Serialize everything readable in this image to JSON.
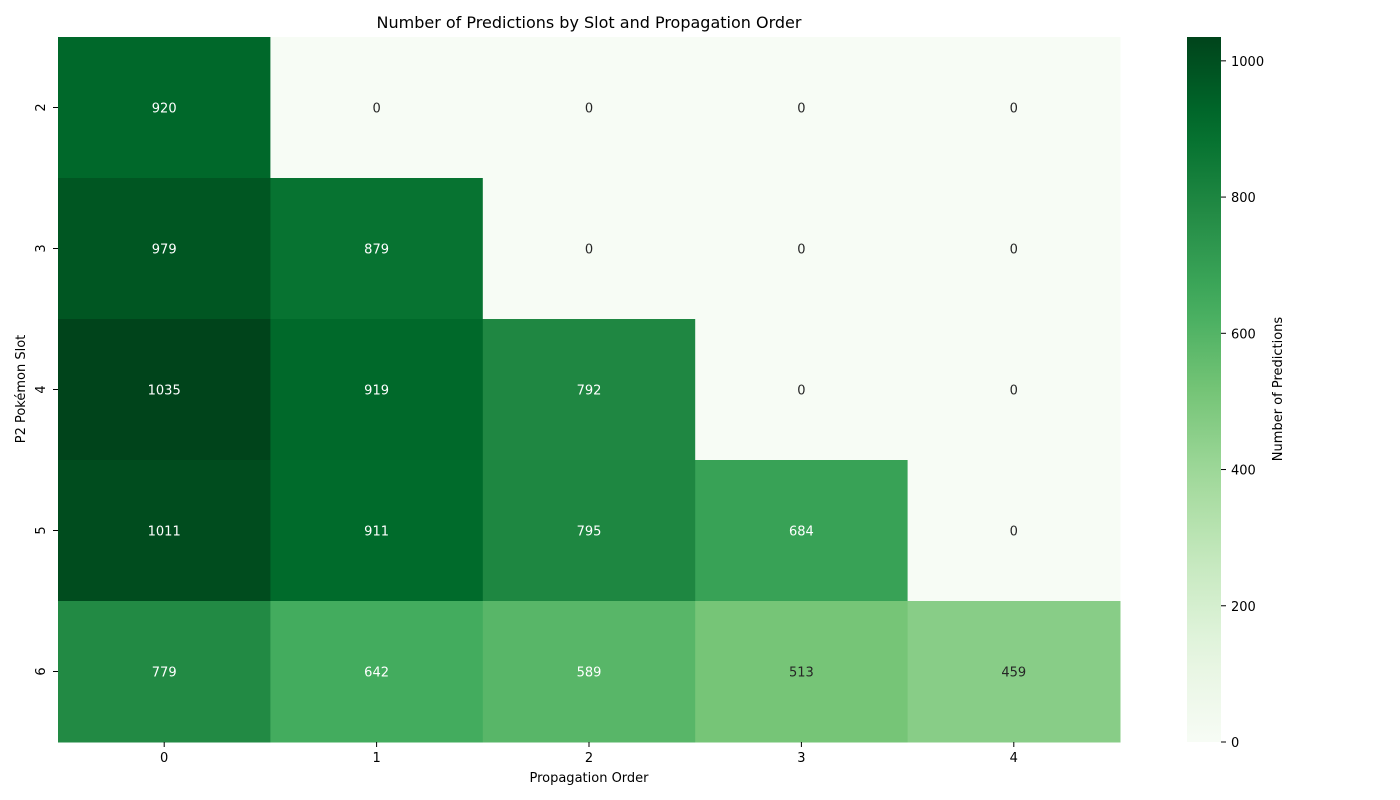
{
  "chart_data": {
    "type": "heatmap",
    "title": "Number of Predictions by Slot and Propagation Order",
    "xlabel": "Propagation Order",
    "ylabel": "P2 Pokémon Slot",
    "x_categories": [
      "0",
      "1",
      "2",
      "3",
      "4"
    ],
    "y_categories": [
      "2",
      "3",
      "4",
      "5",
      "6"
    ],
    "values": [
      [
        920,
        0,
        0,
        0,
        0
      ],
      [
        979,
        879,
        0,
        0,
        0
      ],
      [
        1035,
        919,
        792,
        0,
        0
      ],
      [
        1011,
        911,
        795,
        684,
        0
      ],
      [
        779,
        642,
        589,
        513,
        459
      ]
    ],
    "colormap": "Greens",
    "colorbar": {
      "label": "Number of Predictions",
      "min": 0,
      "max": 1035,
      "ticks": [
        0,
        200,
        400,
        600,
        800,
        1000
      ]
    },
    "annotations": true,
    "grid": false
  }
}
